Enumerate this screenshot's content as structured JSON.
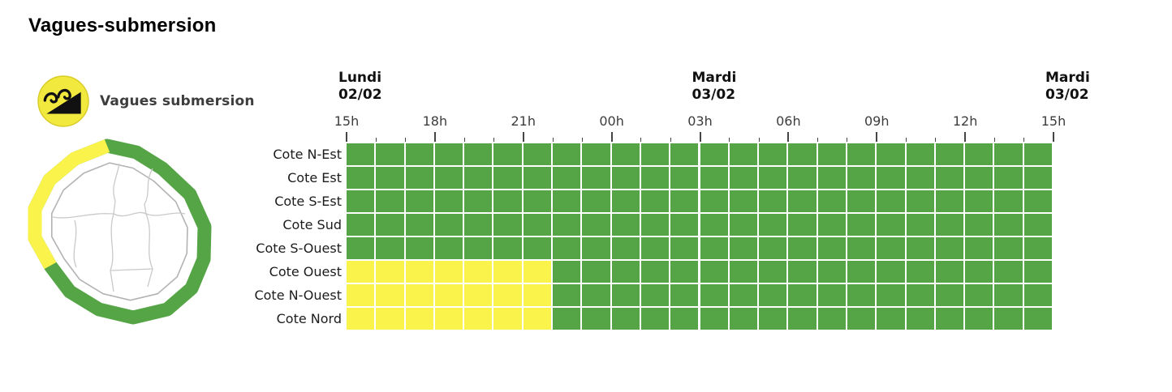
{
  "title": "Vagues-submersion",
  "legend": {
    "label": "Vagues submersion",
    "icon": "waves-submersion-icon",
    "vigilance_level_of_icon": "yellow"
  },
  "colors": {
    "green": "#55A546",
    "yellow": "#FAF34B",
    "tick": "#454545",
    "row_label": "#1c1c1c",
    "day_label": "#111111",
    "hour_label": "#3c3c3c",
    "map_island_border": "#b3b3b3",
    "map_commune_border": "#c9c9c9",
    "icon_yellow": "#F2E93E",
    "icon_black": "#111111"
  },
  "chart_data": {
    "type": "heatmap",
    "title": "Vagues-submersion",
    "description": "Coastal wave-submersion vigilance timeline per coastal zone, 24 hourly columns from Lundi 02/02 15h to Mardi 03/02 15h",
    "x_axis": {
      "hours_span": 24,
      "minor_tick_every_hours": 1,
      "major_tick_every_hours": 3,
      "tick_labels": [
        {
          "label": "15h",
          "col": 0
        },
        {
          "label": "18h",
          "col": 3
        },
        {
          "label": "21h",
          "col": 6
        },
        {
          "label": "00h",
          "col": 9
        },
        {
          "label": "03h",
          "col": 12
        },
        {
          "label": "06h",
          "col": 15
        },
        {
          "label": "09h",
          "col": 18
        },
        {
          "label": "12h",
          "col": 21
        },
        {
          "label": "15h",
          "col": 24
        }
      ]
    },
    "day_headers": [
      {
        "day": "Lundi",
        "date": "02/02",
        "col": 0
      },
      {
        "day": "Mardi",
        "date": "03/02",
        "col": 12
      },
      {
        "day": "Mardi",
        "date": "03/02",
        "col": 24
      }
    ],
    "cell_states": {
      "G": "green",
      "Y": "yellow"
    },
    "rows": [
      {
        "label": "Cote N-Est",
        "cells": "GGGGGGGGGGGGGGGGGGGGGGGG"
      },
      {
        "label": "Cote Est",
        "cells": "GGGGGGGGGGGGGGGGGGGGGGGG"
      },
      {
        "label": "Cote S-Est",
        "cells": "GGGGGGGGGGGGGGGGGGGGGGGG"
      },
      {
        "label": "Cote Sud",
        "cells": "GGGGGGGGGGGGGGGGGGGGGGGG"
      },
      {
        "label": "Cote S-Ouest",
        "cells": "GGGGGGGGGGGGGGGGGGGGGGGG"
      },
      {
        "label": "Cote Ouest",
        "cells": "YYYYYYYGGGGGGGGGGGGGGGGG"
      },
      {
        "label": "Cote N-Ouest",
        "cells": "YYYYYYYGGGGGGGGGGGGGGGGG"
      },
      {
        "label": "Cote Nord",
        "cells": "YYYYYYYGGGGGGGGGGGGGGGGG"
      }
    ],
    "map": {
      "name": "reunion-island-map",
      "coast_yellow_zones": [
        "Cote Ouest",
        "Cote N-Ouest",
        "Cote Nord"
      ],
      "coast_green_zones": [
        "Cote N-Est",
        "Cote Est",
        "Cote S-Est",
        "Cote Sud",
        "Cote S-Ouest"
      ]
    }
  }
}
